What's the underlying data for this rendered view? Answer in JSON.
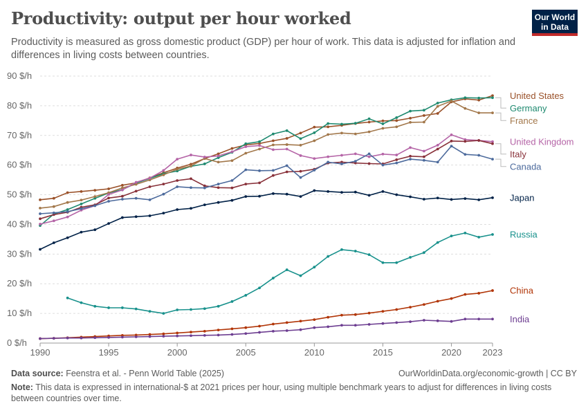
{
  "header": {
    "title": "Productivity: output per hour worked",
    "subtitle": "Productivity is measured as gross domestic product (GDP) per hour of work. This data is adjusted for inflation and differences in living costs between countries.",
    "logo_line1": "Our World",
    "logo_line2": "in Data",
    "logo_bg": "#002147",
    "logo_accent": "#c12a2a"
  },
  "footer": {
    "source_label": "Data source:",
    "source_text": "Feenstra et al. - Penn World Table (2025)",
    "url": "OurWorldinData.org/economic-growth | CC BY",
    "note_label": "Note:",
    "note_text": "This data is expressed in international-$ at 2021 prices per hour, using multiple benchmark years to adjust for differences in living costs between countries over time."
  },
  "chart_data": {
    "type": "line",
    "title": "Productivity: output per hour worked",
    "ylabel": "",
    "xlabel": "",
    "xlim": [
      1990,
      2023
    ],
    "ylim": [
      0,
      90
    ],
    "y_ticks": [
      0,
      10,
      20,
      30,
      40,
      50,
      60,
      70,
      80,
      90
    ],
    "y_tick_labels": [
      "0 $/h",
      "10 $/h",
      "20 $/h",
      "30 $/h",
      "40 $/h",
      "50 $/h",
      "60 $/h",
      "70 $/h",
      "80 $/h",
      "90 $/h"
    ],
    "x_ticks": [
      1990,
      1995,
      2000,
      2005,
      2010,
      2015,
      2020,
      2023
    ],
    "grid": "horizontal dashed",
    "legend": "right, labels at line ends",
    "x": [
      1990,
      1991,
      1992,
      1993,
      1994,
      1995,
      1996,
      1997,
      1998,
      1999,
      2000,
      2001,
      2002,
      2003,
      2004,
      2005,
      2006,
      2007,
      2008,
      2009,
      2010,
      2011,
      2012,
      2013,
      2014,
      2015,
      2016,
      2017,
      2018,
      2019,
      2020,
      2021,
      2022,
      2023
    ],
    "series": [
      {
        "name": "United States",
        "color": "#9a5129",
        "values": [
          48.3,
          48.8,
          50.7,
          51.1,
          51.5,
          52.0,
          53.2,
          54.0,
          55.7,
          57.4,
          59.0,
          60.3,
          62.2,
          63.8,
          65.6,
          66.8,
          67.3,
          68.2,
          69.0,
          70.8,
          72.8,
          72.9,
          73.4,
          74.0,
          74.5,
          74.9,
          75.0,
          75.8,
          76.7,
          77.4,
          81.3,
          82.3,
          81.9,
          83.4
        ]
      },
      {
        "name": "Germany",
        "color": "#1f8a70",
        "values": [
          39.6,
          43.5,
          45.0,
          46.9,
          48.8,
          50.6,
          51.7,
          53.9,
          55.5,
          57.1,
          58.0,
          59.6,
          60.4,
          62.5,
          64.3,
          67.2,
          67.9,
          70.5,
          71.6,
          68.9,
          70.9,
          74.0,
          73.8,
          74.1,
          75.6,
          73.9,
          76.0,
          78.2,
          78.5,
          80.9,
          82.0,
          82.7,
          82.6,
          82.7
        ]
      },
      {
        "name": "France",
        "color": "#a2774a",
        "values": [
          45.5,
          46.0,
          47.4,
          48.2,
          49.4,
          50.7,
          52.3,
          53.5,
          55.0,
          56.7,
          58.6,
          59.7,
          62.2,
          61.0,
          61.5,
          64.0,
          65.4,
          66.8,
          66.9,
          66.7,
          68.2,
          70.3,
          70.8,
          70.5,
          71.2,
          72.4,
          72.9,
          74.4,
          74.5,
          79.8,
          81.6,
          79.1,
          77.6,
          77.6
        ]
      },
      {
        "name": "United Kingdom",
        "color": "#b565a7",
        "values": [
          40.1,
          41.2,
          42.5,
          44.8,
          46.3,
          50.1,
          51.6,
          54.2,
          55.6,
          58.2,
          62.0,
          63.4,
          62.7,
          63.1,
          64.5,
          66.2,
          66.6,
          65.2,
          65.4,
          63.2,
          62.2,
          62.8,
          63.3,
          63.8,
          62.8,
          63.7,
          63.4,
          65.9,
          64.7,
          66.7,
          70.2,
          68.6,
          68.3,
          67.9
        ]
      },
      {
        "name": "Italy",
        "color": "#883039",
        "values": [
          41.9,
          43.3,
          44.1,
          45.8,
          46.6,
          48.9,
          49.5,
          51.2,
          52.7,
          53.6,
          54.8,
          55.4,
          53.0,
          52.4,
          52.3,
          53.6,
          54.0,
          56.5,
          57.7,
          57.9,
          58.6,
          60.7,
          61.0,
          60.7,
          60.5,
          60.4,
          61.8,
          63.0,
          62.8,
          65.4,
          68.1,
          68.0,
          68.3,
          67.2
        ]
      },
      {
        "name": "Canada",
        "color": "#4c6a9c",
        "values": [
          43.6,
          43.9,
          44.3,
          45.3,
          46.3,
          47.8,
          48.5,
          48.8,
          48.3,
          50.2,
          52.7,
          52.4,
          52.3,
          53.6,
          54.8,
          58.4,
          58.1,
          58.2,
          59.8,
          55.8,
          58.3,
          61.0,
          60.4,
          61.3,
          63.8,
          60.0,
          60.7,
          62.0,
          61.6,
          61.0,
          66.4,
          63.6,
          63.3,
          62.0
        ]
      },
      {
        "name": "Japan",
        "color": "#002147",
        "values": [
          31.6,
          33.8,
          35.5,
          37.4,
          38.2,
          40.3,
          42.3,
          42.6,
          42.9,
          43.8,
          45.0,
          45.4,
          46.6,
          47.4,
          48.1,
          49.4,
          49.5,
          50.4,
          50.2,
          49.4,
          51.4,
          51.1,
          50.8,
          50.9,
          49.8,
          51.1,
          50.0,
          49.3,
          48.5,
          48.9,
          48.4,
          48.7,
          48.3,
          49.0
        ]
      },
      {
        "name": "Russia",
        "color": "#18918c",
        "values": [
          null,
          null,
          15.2,
          13.6,
          12.4,
          11.9,
          11.9,
          11.5,
          10.7,
          10.0,
          11.2,
          11.3,
          11.6,
          12.4,
          14.0,
          16.1,
          18.6,
          21.9,
          24.7,
          22.7,
          25.6,
          29.2,
          31.5,
          31.0,
          29.8,
          27.1,
          27.1,
          28.9,
          30.5,
          33.9,
          36.1,
          37.1,
          35.7,
          36.6
        ]
      },
      {
        "name": "China",
        "color": "#b13507",
        "values": [
          1.5,
          1.6,
          1.8,
          2.0,
          2.2,
          2.4,
          2.6,
          2.7,
          2.9,
          3.1,
          3.4,
          3.7,
          4.0,
          4.4,
          4.8,
          5.2,
          5.7,
          6.4,
          6.9,
          7.4,
          7.9,
          8.7,
          9.4,
          9.6,
          10.1,
          10.7,
          11.3,
          12.1,
          13.0,
          14.1,
          15.0,
          16.4,
          16.8,
          17.7
        ]
      },
      {
        "name": "India",
        "color": "#6d3e91",
        "values": [
          1.5,
          1.6,
          1.7,
          1.7,
          1.8,
          1.9,
          2.0,
          2.1,
          2.2,
          2.3,
          2.4,
          2.5,
          2.6,
          2.7,
          2.9,
          3.2,
          3.6,
          4.0,
          4.2,
          4.5,
          5.2,
          5.5,
          6.0,
          6.0,
          6.3,
          6.6,
          6.9,
          7.2,
          7.7,
          7.5,
          7.3,
          8.1,
          8.1,
          8.1
        ]
      }
    ]
  }
}
